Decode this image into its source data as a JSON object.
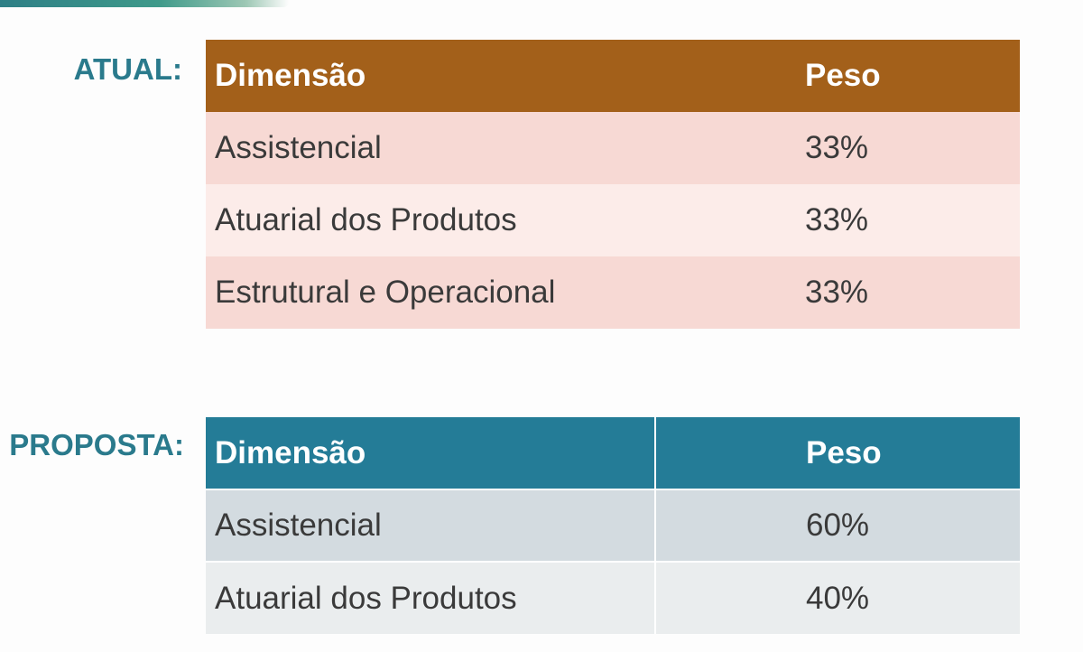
{
  "atual": {
    "label": "ATUAL:",
    "headers": [
      "Dimensão",
      "Peso"
    ],
    "rows": [
      {
        "dimensao": "Assistencial",
        "peso": "33%"
      },
      {
        "dimensao": "Atuarial dos Produtos",
        "peso": "33%"
      },
      {
        "dimensao": "Estrutural e Operacional",
        "peso": "33%"
      }
    ],
    "header_color": "#a3601a",
    "row_colors": [
      "#f7d9d4",
      "#fcece9"
    ]
  },
  "proposta": {
    "label": "PROPOSTA:",
    "headers": [
      "Dimensão",
      "Peso"
    ],
    "rows": [
      {
        "dimensao": "Assistencial",
        "peso": "60%"
      },
      {
        "dimensao": "Atuarial dos Produtos",
        "peso": "40%"
      }
    ],
    "header_color": "#247c97",
    "row_colors": [
      "#d3dbe0",
      "#eaedee"
    ]
  },
  "label_color": "#2a7a8c"
}
